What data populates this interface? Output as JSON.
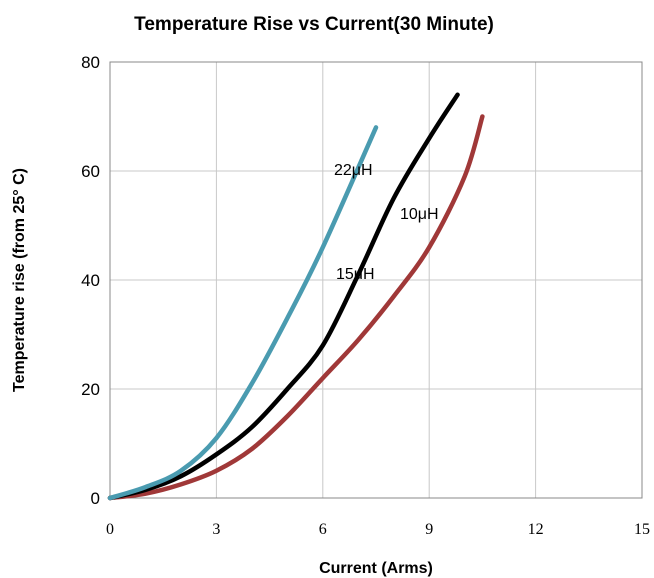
{
  "chart_data": {
    "type": "line",
    "title": "Temperature Rise vs Current(30 Minute)",
    "xlabel": "Current (Arms)",
    "ylabel": "Temperature rise (from 25° C)",
    "xlim": [
      0,
      15
    ],
    "ylim": [
      0,
      80
    ],
    "xticks": [
      "0",
      "3",
      "6",
      "9",
      "12",
      "15"
    ],
    "yticks": [
      "0",
      "20",
      "40",
      "60",
      "80"
    ],
    "grid": true,
    "series": [
      {
        "name": "22μH",
        "color": "#4a9bb0",
        "x": [
          0,
          1,
          2,
          3,
          4,
          5,
          6,
          7.5
        ],
        "y": [
          0,
          2,
          5,
          11,
          21,
          33,
          46,
          68
        ]
      },
      {
        "name": "10μH",
        "color": "#000000",
        "x": [
          0,
          1,
          2,
          3,
          4,
          5,
          6,
          7,
          8,
          9,
          9.8
        ],
        "y": [
          0,
          1.5,
          4,
          8,
          13,
          20,
          28,
          41,
          55,
          66,
          74
        ]
      },
      {
        "name": "15μH",
        "color": "#a03838",
        "x": [
          0,
          1,
          2,
          3,
          4,
          5,
          6,
          7,
          8,
          9,
          10,
          10.5
        ],
        "y": [
          0,
          0.8,
          2.5,
          5,
          9,
          15,
          22,
          29,
          37,
          46,
          59,
          70
        ]
      }
    ]
  }
}
